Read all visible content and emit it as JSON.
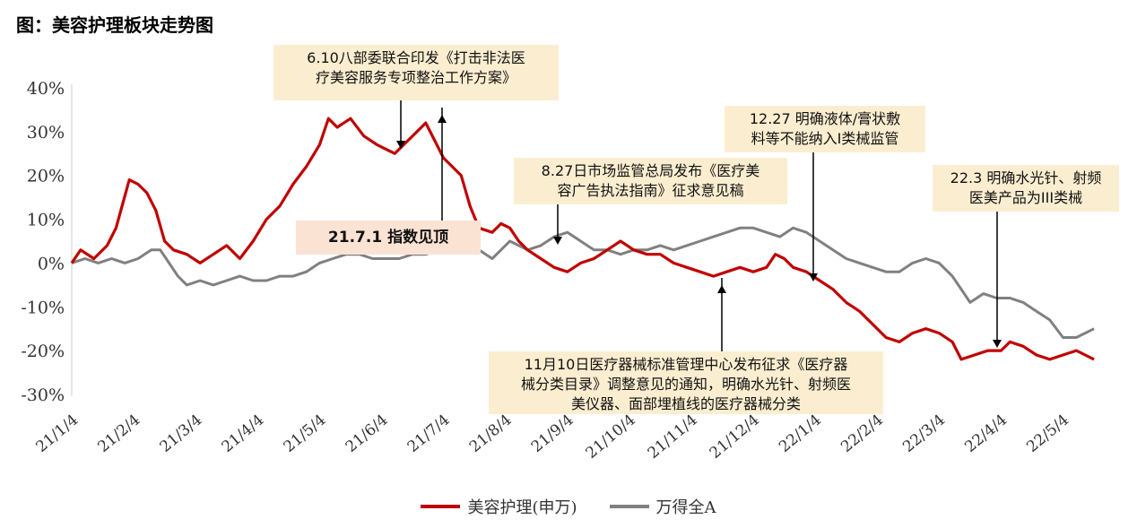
{
  "figure_title": "图：美容护理板块走势图",
  "chart_data": {
    "type": "line",
    "title": "",
    "xlabel": "",
    "ylabel": "",
    "ylim": [
      -30,
      40
    ],
    "y_ticks": [
      "40%",
      "30%",
      "20%",
      "10%",
      "0%",
      "-10%",
      "-20%",
      "-30%"
    ],
    "x_ticks": [
      "21/1/4",
      "21/2/4",
      "21/3/4",
      "21/4/4",
      "21/5/4",
      "21/6/4",
      "21/7/4",
      "21/8/4",
      "21/9/4",
      "21/10/4",
      "21/11/4",
      "21/12/4",
      "22/1/4",
      "22/2/4",
      "22/3/4",
      "22/4/4",
      "22/5/4"
    ],
    "series": [
      {
        "name": "美容护理(申万)",
        "color": "#c00000",
        "points": [
          [
            0,
            0
          ],
          [
            0.1,
            3
          ],
          [
            0.25,
            1
          ],
          [
            0.4,
            4
          ],
          [
            0.5,
            8
          ],
          [
            0.65,
            19
          ],
          [
            0.75,
            18
          ],
          [
            0.85,
            16
          ],
          [
            0.95,
            12
          ],
          [
            1.05,
            5
          ],
          [
            1.15,
            3
          ],
          [
            1.3,
            2
          ],
          [
            1.45,
            0
          ],
          [
            1.6,
            2
          ],
          [
            1.75,
            4
          ],
          [
            1.9,
            1
          ],
          [
            2.05,
            5
          ],
          [
            2.2,
            10
          ],
          [
            2.35,
            13
          ],
          [
            2.5,
            18
          ],
          [
            2.65,
            22
          ],
          [
            2.8,
            27
          ],
          [
            2.9,
            33
          ],
          [
            3.0,
            31
          ],
          [
            3.15,
            33
          ],
          [
            3.3,
            29
          ],
          [
            3.45,
            27
          ],
          [
            3.55,
            26
          ],
          [
            3.65,
            25
          ],
          [
            3.8,
            28
          ],
          [
            3.9,
            30
          ],
          [
            4.0,
            32
          ],
          [
            4.1,
            28
          ],
          [
            4.2,
            24
          ],
          [
            4.3,
            22
          ],
          [
            4.4,
            20
          ],
          [
            4.5,
            13
          ],
          [
            4.6,
            8
          ],
          [
            4.75,
            7
          ],
          [
            4.85,
            9
          ],
          [
            4.95,
            8
          ],
          [
            5.05,
            5
          ],
          [
            5.15,
            3
          ],
          [
            5.3,
            1
          ],
          [
            5.45,
            -1
          ],
          [
            5.6,
            -2
          ],
          [
            5.75,
            0
          ],
          [
            5.9,
            1
          ],
          [
            6.05,
            3
          ],
          [
            6.2,
            5
          ],
          [
            6.35,
            3
          ],
          [
            6.5,
            2
          ],
          [
            6.65,
            2
          ],
          [
            6.8,
            0
          ],
          [
            6.95,
            -1
          ],
          [
            7.1,
            -2
          ],
          [
            7.25,
            -3
          ],
          [
            7.4,
            -2
          ],
          [
            7.55,
            -1
          ],
          [
            7.7,
            -2
          ],
          [
            7.85,
            -1
          ],
          [
            7.95,
            2
          ],
          [
            8.05,
            1
          ],
          [
            8.15,
            -1
          ],
          [
            8.3,
            -2
          ],
          [
            8.45,
            -4
          ],
          [
            8.6,
            -6
          ],
          [
            8.75,
            -9
          ],
          [
            8.9,
            -11
          ],
          [
            9.05,
            -14
          ],
          [
            9.2,
            -17
          ],
          [
            9.35,
            -18
          ],
          [
            9.5,
            -16
          ],
          [
            9.65,
            -15
          ],
          [
            9.8,
            -16
          ],
          [
            9.95,
            -18
          ],
          [
            10.05,
            -22
          ],
          [
            10.2,
            -21
          ],
          [
            10.35,
            -20
          ],
          [
            10.5,
            -20
          ],
          [
            10.6,
            -18
          ],
          [
            10.75,
            -19
          ],
          [
            10.9,
            -21
          ],
          [
            11.05,
            -22
          ],
          [
            11.2,
            -21
          ],
          [
            11.35,
            -20
          ],
          [
            11.45,
            -21
          ],
          [
            11.55,
            -22
          ]
        ]
      },
      {
        "name": "万得全A",
        "color": "#808080",
        "points": [
          [
            0,
            0
          ],
          [
            0.15,
            1
          ],
          [
            0.3,
            0
          ],
          [
            0.45,
            1
          ],
          [
            0.6,
            0
          ],
          [
            0.75,
            1
          ],
          [
            0.9,
            3
          ],
          [
            1.0,
            3
          ],
          [
            1.1,
            0
          ],
          [
            1.2,
            -3
          ],
          [
            1.3,
            -5
          ],
          [
            1.45,
            -4
          ],
          [
            1.6,
            -5
          ],
          [
            1.75,
            -4
          ],
          [
            1.9,
            -3
          ],
          [
            2.05,
            -4
          ],
          [
            2.2,
            -4
          ],
          [
            2.35,
            -3
          ],
          [
            2.5,
            -3
          ],
          [
            2.65,
            -2
          ],
          [
            2.8,
            0
          ],
          [
            2.95,
            1
          ],
          [
            3.1,
            2
          ],
          [
            3.25,
            2
          ],
          [
            3.4,
            1
          ],
          [
            3.55,
            1
          ],
          [
            3.7,
            1
          ],
          [
            3.85,
            2
          ],
          [
            4.0,
            2
          ],
          [
            4.15,
            3
          ],
          [
            4.3,
            3
          ],
          [
            4.45,
            5
          ],
          [
            4.6,
            3
          ],
          [
            4.75,
            1
          ],
          [
            4.85,
            3
          ],
          [
            4.95,
            5
          ],
          [
            5.05,
            4
          ],
          [
            5.15,
            3
          ],
          [
            5.3,
            4
          ],
          [
            5.45,
            6
          ],
          [
            5.6,
            7
          ],
          [
            5.75,
            5
          ],
          [
            5.9,
            3
          ],
          [
            6.05,
            3
          ],
          [
            6.2,
            2
          ],
          [
            6.35,
            3
          ],
          [
            6.5,
            3
          ],
          [
            6.65,
            4
          ],
          [
            6.8,
            3
          ],
          [
            6.95,
            4
          ],
          [
            7.1,
            5
          ],
          [
            7.25,
            6
          ],
          [
            7.4,
            7
          ],
          [
            7.55,
            8
          ],
          [
            7.7,
            8
          ],
          [
            7.85,
            7
          ],
          [
            8.0,
            6
          ],
          [
            8.15,
            8
          ],
          [
            8.3,
            7
          ],
          [
            8.45,
            5
          ],
          [
            8.6,
            3
          ],
          [
            8.75,
            1
          ],
          [
            8.9,
            0
          ],
          [
            9.05,
            -1
          ],
          [
            9.2,
            -2
          ],
          [
            9.35,
            -2
          ],
          [
            9.5,
            0
          ],
          [
            9.65,
            1
          ],
          [
            9.8,
            0
          ],
          [
            9.95,
            -3
          ],
          [
            10.05,
            -6
          ],
          [
            10.15,
            -9
          ],
          [
            10.3,
            -7
          ],
          [
            10.45,
            -8
          ],
          [
            10.6,
            -8
          ],
          [
            10.75,
            -9
          ],
          [
            10.9,
            -11
          ],
          [
            11.05,
            -13
          ],
          [
            11.2,
            -17
          ],
          [
            11.35,
            -17
          ],
          [
            11.45,
            -16
          ],
          [
            11.55,
            -15
          ]
        ]
      }
    ]
  },
  "annotations": {
    "a1": "6.10八部委联合印发《打击非法医\n疗美容服务专项整治工作方案》",
    "a2": "21.7.1 指数见顶",
    "a3": "8.27日市场监管总局发布《医疗美\n容广告执法指南》征求意见稿",
    "a4": "12.27 明确液体/膏状敷\n料等不能纳入I类械监管",
    "a5": "22.3 明确水光针、射频\n医美产品为III类械",
    "a6": "11月10日医疗器械标准管理中心发布征求《医疗器\n械分类目录》调整意见的通知，明确水光针、射频医\n美仪器、面部埋植线的医疗器械分类"
  },
  "legend": {
    "series_1": "美容护理(申万)",
    "series_2": "万得全A"
  }
}
